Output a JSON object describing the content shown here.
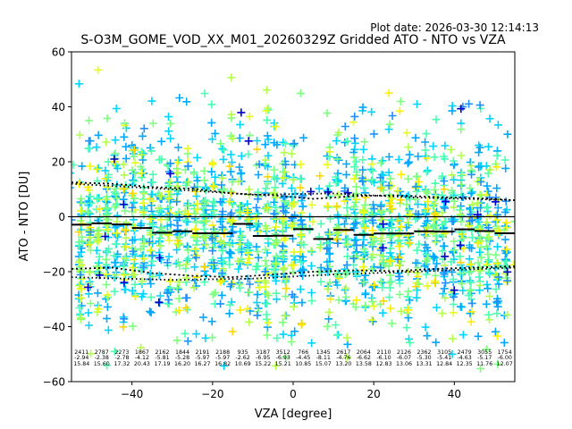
{
  "chart_data": {
    "type": "scatter",
    "plot_date": "Plot date: 2026-03-30 12:14:13",
    "title": "S-O3M_GOME_VOD_XX_M01_20260329Z Gridded ATO - NTO vs VZA",
    "xlabel": "VZA [degree]",
    "ylabel": "ATO - NTO [DU]",
    "xlim": [
      -55,
      55
    ],
    "ylim": [
      -60,
      60
    ],
    "xticks": [
      -40,
      -20,
      0,
      20,
      40
    ],
    "yticks": [
      -60,
      -40,
      -20,
      0,
      20,
      40,
      60
    ],
    "tick_labels_x": [
      "−40",
      "−20",
      "0",
      "20",
      "40"
    ],
    "tick_labels_y": [
      "−60",
      "−40",
      "−20",
      "0",
      "20",
      "40",
      "60"
    ],
    "marker_colors": [
      "#00d4ff",
      "#00a8ff",
      "#4dffb0",
      "#7fff7f",
      "#b2ff4c",
      "#e5ff19",
      "#ffee00",
      "#ffd700",
      "#3cffc2",
      "#1e90ff",
      "#0000cc"
    ],
    "zero_line": 0,
    "bins": [
      {
        "x": -52.5,
        "count": "2411",
        "mean": "-2.94",
        "std": "15.84",
        "median": -2.9
      },
      {
        "x": -47.5,
        "count": "2787",
        "mean": "-2.38",
        "std": "15.60",
        "median": -2.4
      },
      {
        "x": -42.5,
        "count": "2273",
        "mean": "-2.78",
        "std": "17.32",
        "median": -2.8
      },
      {
        "x": -37.5,
        "count": "1867",
        "mean": "-4.12",
        "std": "20.43",
        "median": -4.1
      },
      {
        "x": -32.5,
        "count": "2162",
        "mean": "-5.81",
        "std": "17.19",
        "median": -5.8
      },
      {
        "x": -27.5,
        "count": "1844",
        "mean": "-5.28",
        "std": "16.20",
        "median": -5.3
      },
      {
        "x": -22.5,
        "count": "2191",
        "mean": "-5.97",
        "std": "16.27",
        "median": -6.0
      },
      {
        "x": -17.5,
        "count": "2188",
        "mean": "-5.97",
        "std": "16.82",
        "median": -6.0
      },
      {
        "x": -12.5,
        "count": "935",
        "mean": "-2.62",
        "std": "10.69",
        "median": -2.6
      },
      {
        "x": -7.5,
        "count": "3187",
        "mean": "-6.95",
        "std": "15.22",
        "median": -7.0
      },
      {
        "x": -2.5,
        "count": "3512",
        "mean": "-6.93",
        "std": "15.21",
        "median": -6.9
      },
      {
        "x": 2.5,
        "count": "766",
        "mean": "-4.45",
        "std": "10.85",
        "median": -4.5
      },
      {
        "x": 7.5,
        "count": "1345",
        "mean": "-8.11",
        "std": "15.07",
        "median": -8.1
      },
      {
        "x": 12.5,
        "count": "2617",
        "mean": "-4.76",
        "std": "13.20",
        "median": -4.8
      },
      {
        "x": 17.5,
        "count": "2064",
        "mean": "-6.62",
        "std": "13.58",
        "median": -6.6
      },
      {
        "x": 22.5,
        "count": "2110",
        "mean": "-6.10",
        "std": "12.83",
        "median": -6.1
      },
      {
        "x": 27.5,
        "count": "2126",
        "mean": "-6.07",
        "std": "13.06",
        "median": -6.1
      },
      {
        "x": 32.5,
        "count": "2362",
        "mean": "-5.30",
        "std": "13.31",
        "median": -5.3
      },
      {
        "x": 37.5,
        "count": "3105",
        "mean": "-5.41",
        "std": "12.84",
        "median": -5.4
      },
      {
        "x": 42.5,
        "count": "2479",
        "mean": "-4.63",
        "std": "12.35",
        "median": -4.6
      },
      {
        "x": 47.5,
        "count": "3055",
        "mean": "-5.17",
        "std": "11.76",
        "median": -5.2
      },
      {
        "x": 52.5,
        "count": "1754",
        "mean": "-6.00",
        "std": "12.07",
        "median": -6.0
      }
    ],
    "upper_dotted": [
      [
        -55,
        12.5
      ],
      [
        -45,
        12.0
      ],
      [
        -35,
        10.8
      ],
      [
        -25,
        10.2
      ],
      [
        -15,
        8.5
      ],
      [
        -5,
        7.8
      ],
      [
        5,
        6.5
      ],
      [
        15,
        7.5
      ],
      [
        25,
        7.8
      ],
      [
        35,
        7.2
      ],
      [
        45,
        6.8
      ],
      [
        55,
        6.0
      ]
    ],
    "lower_dotted": [
      [
        -55,
        -19.0
      ],
      [
        -45,
        -18.5
      ],
      [
        -35,
        -20.5
      ],
      [
        -25,
        -21.5
      ],
      [
        -15,
        -22.0
      ],
      [
        -5,
        -21.0
      ],
      [
        5,
        -20.0
      ],
      [
        15,
        -19.5
      ],
      [
        25,
        -19.8
      ],
      [
        35,
        -19.0
      ],
      [
        45,
        -18.5
      ],
      [
        55,
        -18.0
      ]
    ],
    "inner_dotted_upper": [
      [
        -55,
        12.0
      ],
      [
        -30,
        10.0
      ],
      [
        -10,
        8.0
      ],
      [
        10,
        8.5
      ],
      [
        30,
        7.0
      ],
      [
        55,
        6.0
      ]
    ],
    "inner_dotted_lower": [
      [
        -55,
        -22.0
      ],
      [
        -30,
        -23.0
      ],
      [
        -10,
        -22.5
      ],
      [
        10,
        -21.0
      ],
      [
        30,
        -20.0
      ],
      [
        55,
        -18.5
      ]
    ]
  }
}
